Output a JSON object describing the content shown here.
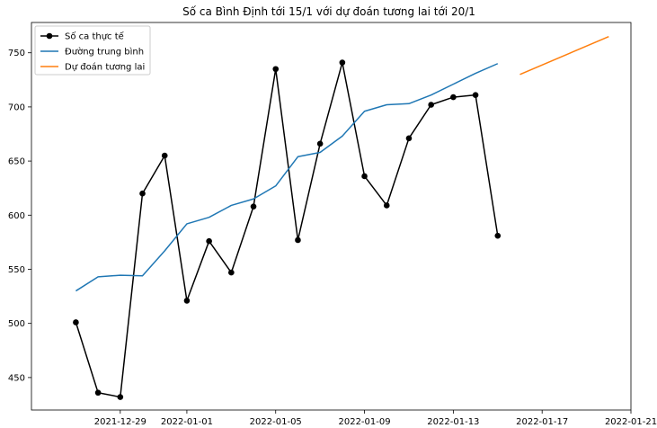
{
  "chart_data": {
    "type": "line",
    "title": "Số ca Bình Định tới 15/1 với dự đoán tương lai tới 20/1",
    "xlabel": "",
    "ylabel": "",
    "x_ticks": [
      "2021-12-29",
      "2022-01-01",
      "2022-01-05",
      "2022-01-09",
      "2022-01-13",
      "2022-01-17",
      "2022-01-21"
    ],
    "y_ticks": [
      450,
      500,
      550,
      600,
      650,
      700,
      750
    ],
    "xlim": [
      "2021-12-25",
      "2022-01-21"
    ],
    "ylim": [
      420,
      778
    ],
    "grid": false,
    "legend_position": "top-left",
    "series": [
      {
        "name": "Số ca thực tế",
        "color": "#000000",
        "marker": "circle",
        "x": [
          "2021-12-27",
          "2021-12-28",
          "2021-12-29",
          "2021-12-30",
          "2021-12-31",
          "2022-01-01",
          "2022-01-02",
          "2022-01-03",
          "2022-01-04",
          "2022-01-05",
          "2022-01-06",
          "2022-01-07",
          "2022-01-08",
          "2022-01-09",
          "2022-01-10",
          "2022-01-11",
          "2022-01-12",
          "2022-01-13",
          "2022-01-14",
          "2022-01-15"
        ],
        "y": [
          501,
          436,
          432,
          620,
          655,
          521,
          576,
          547,
          608,
          735,
          577,
          666,
          741,
          636,
          609,
          671,
          702,
          709,
          711,
          581
        ]
      },
      {
        "name": "Đường trung bình",
        "color": "#1f77b4",
        "marker": "none",
        "x": [
          "2021-12-27",
          "2021-12-28",
          "2021-12-29",
          "2021-12-30",
          "2021-12-31",
          "2022-01-01",
          "2022-01-02",
          "2022-01-03",
          "2022-01-04",
          "2022-01-05",
          "2022-01-06",
          "2022-01-07",
          "2022-01-08",
          "2022-01-09",
          "2022-01-10",
          "2022-01-11",
          "2022-01-12",
          "2022-01-13",
          "2022-01-14",
          "2022-01-15"
        ],
        "y": [
          530,
          543,
          544.5,
          544,
          567,
          592,
          598,
          609,
          615,
          627,
          654,
          658,
          673,
          696,
          702,
          703,
          711,
          721,
          731,
          740
        ]
      },
      {
        "name": "Dự đoán tương lai",
        "color": "#ff7f0e",
        "marker": "none",
        "x": [
          "2022-01-16",
          "2022-01-20"
        ],
        "y": [
          730,
          765
        ]
      }
    ]
  }
}
